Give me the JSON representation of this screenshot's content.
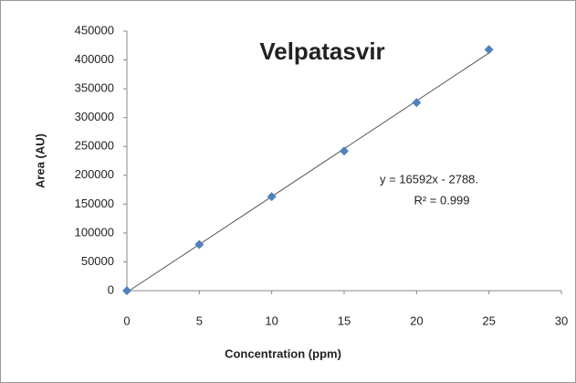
{
  "chart_data": {
    "type": "scatter",
    "title": "Velpatasvir",
    "x_label": "Concentration (ppm)",
    "y_label": "Area (AU)",
    "series": [
      {
        "name": "Velpatasvir",
        "color": "#4f81bd",
        "x": [
          0,
          5,
          10,
          15,
          20,
          25
        ],
        "values": [
          0,
          80000,
          163000,
          242000,
          326000,
          418000
        ]
      }
    ],
    "trendline": {
      "slope": 16592,
      "intercept": -2788,
      "color": "#555555",
      "equation": "y = 16592x - 2788.",
      "r_squared": "R² = 0.999"
    },
    "xlim": [
      0,
      30
    ],
    "xticks": [
      0,
      5,
      10,
      15,
      20,
      25,
      30
    ],
    "ylim": [
      0,
      450000
    ],
    "yticks": [
      0,
      50000,
      100000,
      150000,
      200000,
      250000,
      300000,
      350000,
      400000,
      450000
    ],
    "grid": false
  }
}
